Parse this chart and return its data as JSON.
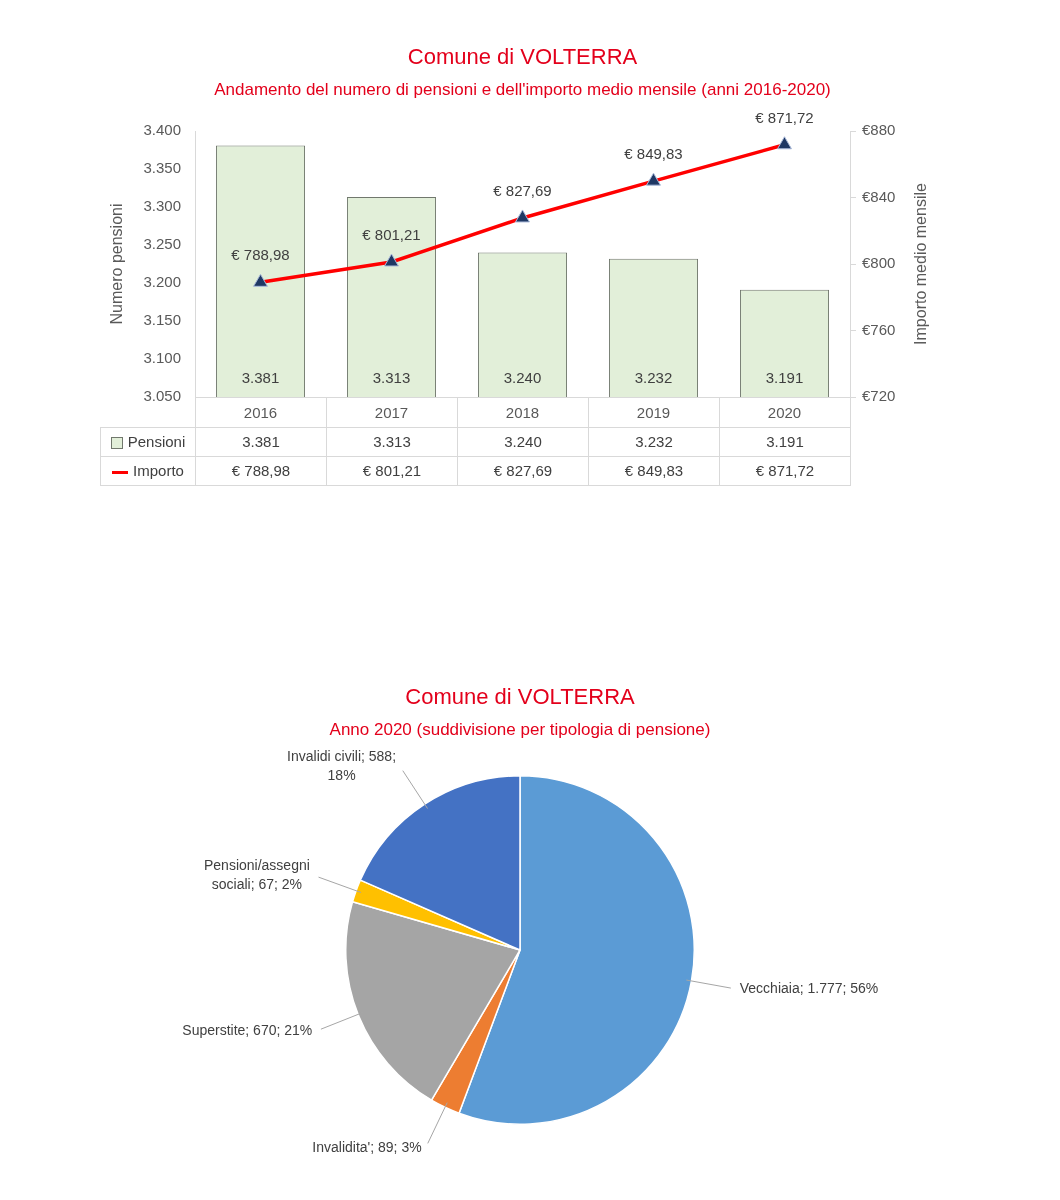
{
  "chart_data": [
    {
      "type": "bar",
      "title": "Comune di VOLTERRA",
      "subtitle": "Andamento del numero di pensioni e dell'importo medio mensile (anni 2016-2020)",
      "ylabel": "Numero pensioni",
      "y2label": "Importo medio mensile",
      "categories": [
        "2016",
        "2017",
        "2018",
        "2019",
        "2020"
      ],
      "series": [
        {
          "name": "Pensioni",
          "type": "bar",
          "color": "#e2efd9",
          "values": [
            3381,
            3313,
            3240,
            3232,
            3191
          ],
          "value_labels": [
            "3.381",
            "3.313",
            "3.240",
            "3.232",
            "3.191"
          ]
        },
        {
          "name": "Importo",
          "type": "line",
          "axis": "y2",
          "color": "#ff0000",
          "values": [
            788.98,
            801.21,
            827.69,
            849.83,
            871.72
          ],
          "value_labels": [
            "€ 788,98",
            "€ 801,21",
            "€ 827,69",
            "€ 849,83",
            "€ 871,72"
          ]
        }
      ],
      "ylim": [
        3050,
        3400
      ],
      "yticks": [
        {
          "value": 3050,
          "label": "3.050"
        },
        {
          "value": 3100,
          "label": "3.100"
        },
        {
          "value": 3150,
          "label": "3.150"
        },
        {
          "value": 3200,
          "label": "3.200"
        },
        {
          "value": 3250,
          "label": "3.250"
        },
        {
          "value": 3300,
          "label": "3.300"
        },
        {
          "value": 3350,
          "label": "3.350"
        },
        {
          "value": 3400,
          "label": "3.400"
        }
      ],
      "y2lim": [
        720,
        880
      ],
      "y2ticks": [
        {
          "value": 720,
          "label": "€720"
        },
        {
          "value": 760,
          "label": "€760"
        },
        {
          "value": 800,
          "label": "€800"
        },
        {
          "value": 840,
          "label": "€840"
        },
        {
          "value": 880,
          "label": "€880"
        }
      ],
      "marker": "triangle",
      "legend": "bottom left"
    },
    {
      "type": "pie",
      "title": "Comune di VOLTERRA",
      "subtitle": "Anno 2020 (suddivisione per tipologia di pensione)",
      "categories": [
        "Vecchiaia",
        "Invalidita'",
        "Superstite",
        "Pensioni/assegni sociali",
        "Invalidi civili"
      ],
      "values": [
        1777,
        89,
        670,
        67,
        588
      ],
      "colors": [
        "#5b9bd5",
        "#ed7d31",
        "#a5a5a5",
        "#ffc000",
        "#4472c4"
      ],
      "value_labels": [
        "1.777; 56%",
        "89; 3%",
        "670; 21%",
        "67; 2%",
        "588; 18%"
      ]
    }
  ]
}
